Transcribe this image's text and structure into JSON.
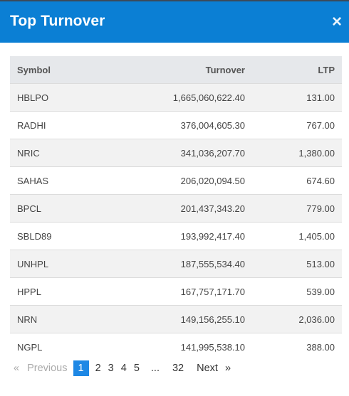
{
  "modal": {
    "title": "Top Turnover",
    "close_glyph": "×"
  },
  "table": {
    "columns": [
      "Symbol",
      "Turnover",
      "LTP"
    ],
    "rows": [
      {
        "symbol": "HBLPO",
        "turnover": "1,665,060,622.40",
        "ltp": "131.00"
      },
      {
        "symbol": "RADHI",
        "turnover": "376,004,605.30",
        "ltp": "767.00"
      },
      {
        "symbol": "NRIC",
        "turnover": "341,036,207.70",
        "ltp": "1,380.00"
      },
      {
        "symbol": "SAHAS",
        "turnover": "206,020,094.50",
        "ltp": "674.60"
      },
      {
        "symbol": "BPCL",
        "turnover": "201,437,343.20",
        "ltp": "779.00"
      },
      {
        "symbol": "SBLD89",
        "turnover": "193,992,417.40",
        "ltp": "1,405.00"
      },
      {
        "symbol": "UNHPL",
        "turnover": "187,555,534.40",
        "ltp": "513.00"
      },
      {
        "symbol": "HPPL",
        "turnover": "167,757,171.70",
        "ltp": "539.00"
      },
      {
        "symbol": "NRN",
        "turnover": "149,156,255.10",
        "ltp": "2,036.00"
      },
      {
        "symbol": "NGPL",
        "turnover": "141,995,538.10",
        "ltp": "388.00"
      }
    ]
  },
  "pagination": {
    "first_arrow": "«",
    "previous": "Previous",
    "pages": [
      "1",
      "2",
      "3",
      "4",
      "5",
      "...",
      "32"
    ],
    "active_page": "1",
    "next": "Next",
    "last_arrow": "»"
  },
  "colors": {
    "header": "#0b7fd4",
    "active_page": "#1e88e5",
    "row_alt": "#f2f2f2",
    "table_head": "#e6e8eb"
  }
}
